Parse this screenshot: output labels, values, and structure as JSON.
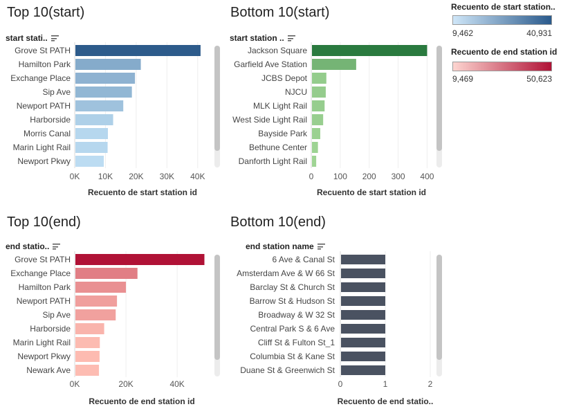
{
  "chart_data": [
    {
      "title": "Top 10(start)",
      "type": "bar",
      "orientation": "horizontal",
      "field_header": "start stati..",
      "categories": [
        "Grove St PATH",
        "Hamilton Park",
        "Exchange Place",
        "Sip Ave",
        "Newport PATH",
        "Harborside",
        "Morris Canal",
        "Marin Light Rail",
        "Newport Pkwy"
      ],
      "values": [
        40931,
        21500,
        19600,
        18600,
        15800,
        12500,
        10800,
        10700,
        9462
      ],
      "xlabel": "Recuento de start station id",
      "xlim": [
        0,
        45000
      ],
      "ticks": [
        0,
        10000,
        20000,
        30000,
        40000
      ],
      "tick_labels": [
        "0K",
        "10K",
        "20K",
        "30K",
        "40K"
      ],
      "color_scale": "blue",
      "color_range": [
        9462,
        40931
      ]
    },
    {
      "title": "Bottom 10(start)",
      "type": "bar",
      "orientation": "horizontal",
      "field_header": "start station ..",
      "categories": [
        "Jackson Square",
        "Garfield Ave Station",
        "JCBS Depot",
        "NJCU",
        "MLK Light Rail",
        "West Side Light Rail",
        "Bayside Park",
        "Bethune Center",
        "Danforth Light Rail"
      ],
      "values": [
        400,
        155,
        52,
        50,
        46,
        41,
        31,
        23,
        17
      ],
      "xlabel": "Recuento de start station id",
      "xlim": [
        0,
        430
      ],
      "ticks": [
        0,
        100,
        200,
        300,
        400
      ],
      "tick_labels": [
        "0",
        "100",
        "200",
        "300",
        "400"
      ],
      "color_scale": "green",
      "color_range": [
        17,
        400
      ]
    },
    {
      "title": "Top 10(end)",
      "type": "bar",
      "orientation": "horizontal",
      "field_header": "end statio..",
      "categories": [
        "Grove St PATH",
        "Exchange Place",
        "Hamilton Park",
        "Newport PATH",
        "Sip Ave",
        "Harborside",
        "Marin Light Rail",
        "Newport Pkwy",
        "Newark Ave"
      ],
      "values": [
        50623,
        24500,
        20000,
        16500,
        16000,
        11500,
        9800,
        9700,
        9469
      ],
      "xlabel": "Recuento de end station id",
      "xlim": [
        0,
        54000
      ],
      "ticks": [
        0,
        20000,
        40000
      ],
      "tick_labels": [
        "0K",
        "20K",
        "40K"
      ],
      "color_scale": "red",
      "color_range": [
        9469,
        50623
      ]
    },
    {
      "title": "Bottom 10(end)",
      "type": "bar",
      "orientation": "horizontal",
      "field_header": "end station name",
      "categories": [
        "6 Ave & Canal St",
        "Amsterdam Ave & W 66 St",
        "Barclay St & Church St",
        "Barrow St & Hudson St",
        "Broadway & W 32 St",
        "Central Park S & 6 Ave",
        "Cliff St & Fulton St_1",
        "Columbia St & Kane St",
        "Duane St & Greenwich St"
      ],
      "values": [
        1,
        1,
        1,
        1,
        1,
        1,
        1,
        1,
        1
      ],
      "xlabel": "Recuento de end statio..",
      "xlim": [
        0,
        2
      ],
      "ticks": [
        0,
        1,
        2
      ],
      "tick_labels": [
        "0",
        "1",
        "2"
      ],
      "color_scale": "slate",
      "color_range": [
        1,
        1
      ]
    }
  ],
  "legends": [
    {
      "title": "Recuento de start station..",
      "min_label": "9,462",
      "max_label": "40,931",
      "color_from": "#cfe6f8",
      "color_to": "#2a5a8c"
    },
    {
      "title": "Recuento de end station id",
      "min_label": "9,469",
      "max_label": "50,623",
      "color_from": "#fdd5d0",
      "color_to": "#b01236"
    }
  ],
  "colors": {
    "blue": [
      "#bcdcf2",
      "#2d5b8b"
    ],
    "green": [
      "#9fd494",
      "#2a7a3f"
    ],
    "red": [
      "#fdbcb2",
      "#b01236"
    ],
    "slate": [
      "#4a5261",
      "#4a5261"
    ]
  }
}
